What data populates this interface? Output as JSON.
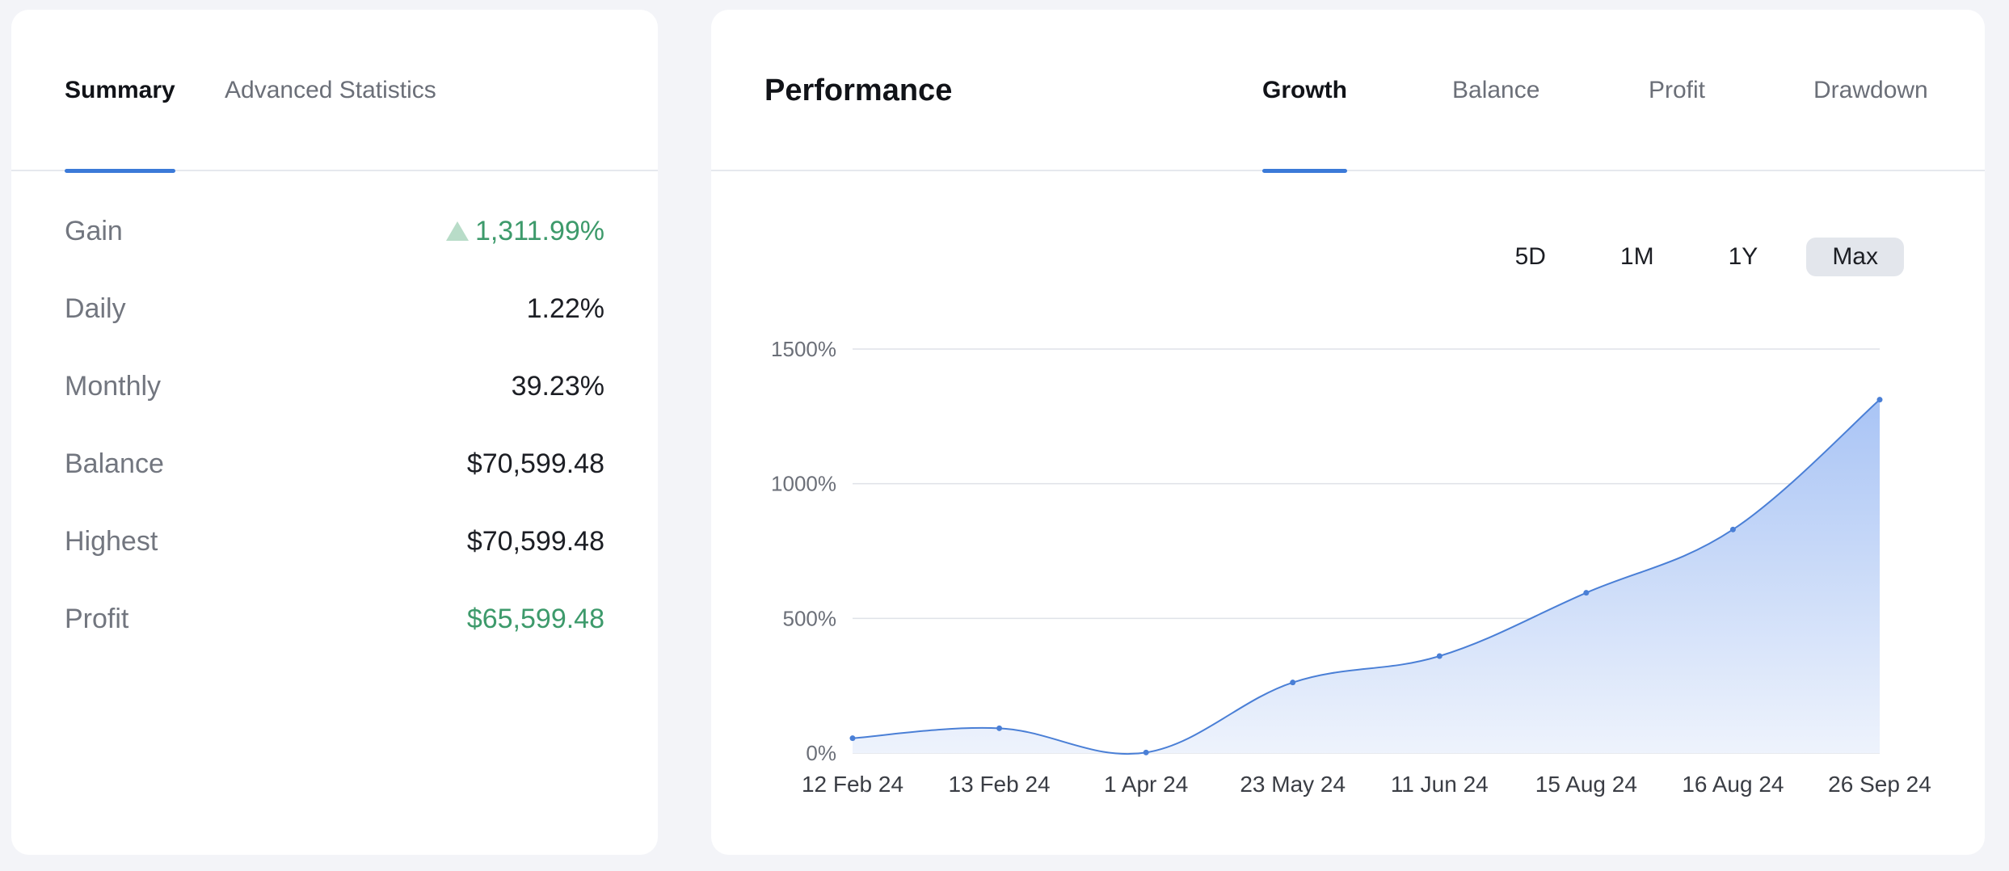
{
  "summary_panel": {
    "tabs": [
      {
        "label": "Summary",
        "active": true
      },
      {
        "label": "Advanced Statistics",
        "active": false
      }
    ],
    "stats": [
      {
        "label": "Gain",
        "value": "1,311.99%",
        "trend": "up"
      },
      {
        "label": "Daily",
        "value": "1.22%"
      },
      {
        "label": "Monthly",
        "value": "39.23%"
      },
      {
        "label": "Balance",
        "value": "$70,599.48"
      },
      {
        "label": "Highest",
        "value": "$70,599.48"
      },
      {
        "label": "Profit",
        "value": "$65,599.48",
        "positive": true
      }
    ]
  },
  "performance_panel": {
    "title": "Performance",
    "tabs": [
      {
        "label": "Growth",
        "active": true
      },
      {
        "label": "Balance",
        "active": false
      },
      {
        "label": "Profit",
        "active": false
      },
      {
        "label": "Drawdown",
        "active": false
      }
    ],
    "ranges": [
      {
        "label": "5D",
        "selected": false
      },
      {
        "label": "1M",
        "selected": false
      },
      {
        "label": "1Y",
        "selected": false
      },
      {
        "label": "Max",
        "selected": true
      }
    ]
  },
  "colors": {
    "accent": "#3b7ad8",
    "positive": "#3d9a6b",
    "area_top": "#a9c4f5",
    "area_bottom": "#eef3fc",
    "line": "#4a7fd6",
    "grid": "#dfe2e8"
  },
  "chart_data": {
    "type": "area",
    "x": [
      "12 Feb 24",
      "13 Feb 24",
      "1 Apr 24",
      "23 May 24",
      "11 Jun 24",
      "15 Aug 24",
      "16 Aug 24",
      "26 Sep 24"
    ],
    "series": [
      {
        "values": [
          55,
          92,
          2,
          262,
          360,
          595,
          830,
          1312
        ]
      }
    ],
    "yticks": [
      "0%",
      "500%",
      "1000%",
      "1500%"
    ],
    "ytick_values": [
      0,
      500,
      1000,
      1500
    ],
    "ylim": [
      0,
      1500
    ],
    "grid": true
  }
}
